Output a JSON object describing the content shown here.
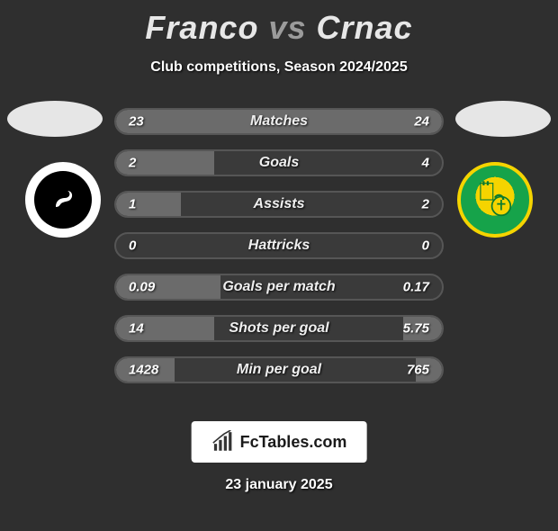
{
  "title": {
    "player1": "Franco",
    "vs": "vs",
    "player2": "Crnac"
  },
  "subtitle": "Club competitions, Season 2024/2025",
  "date": "23 january 2025",
  "watermark": "FcTables.com",
  "colors": {
    "bg": "#2f2f2f",
    "bar_bg": "#3a3a3a",
    "bar_border": "#565656",
    "bar_fill": "#6b6b6b",
    "text": "#ffffff"
  },
  "bars": [
    {
      "label": "Matches",
      "left_val": "23",
      "right_val": "24",
      "left_pct": 49,
      "right_pct": 51
    },
    {
      "label": "Goals",
      "left_val": "2",
      "right_val": "4",
      "left_pct": 30,
      "right_pct": 0
    },
    {
      "label": "Assists",
      "left_val": "1",
      "right_val": "2",
      "left_pct": 20,
      "right_pct": 0
    },
    {
      "label": "Hattricks",
      "left_val": "0",
      "right_val": "0",
      "left_pct": 0,
      "right_pct": 0
    },
    {
      "label": "Goals per match",
      "left_val": "0.09",
      "right_val": "0.17",
      "left_pct": 32,
      "right_pct": 0
    },
    {
      "label": "Shots per goal",
      "left_val": "14",
      "right_val": "5.75",
      "left_pct": 30,
      "right_pct": 12
    },
    {
      "label": "Min per goal",
      "left_val": "1428",
      "right_val": "765",
      "left_pct": 18,
      "right_pct": 8
    }
  ]
}
